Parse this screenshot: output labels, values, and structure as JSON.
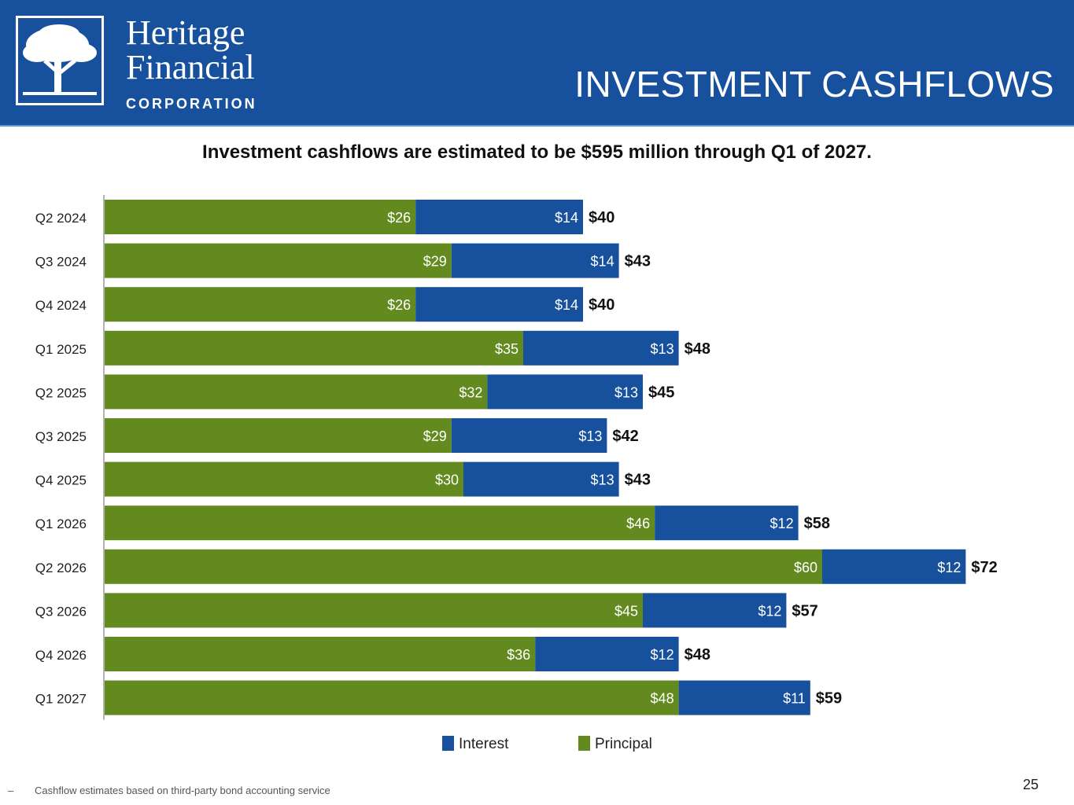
{
  "header": {
    "logo_line1": "Heritage",
    "logo_line2": "Financial",
    "logo_line3": "CORPORATION",
    "title": "INVESTMENT CASHFLOWS",
    "color": "#17509c"
  },
  "subtitle": "Investment cashflows are estimated to be $595 million through Q1 of 2027.",
  "chart_data": {
    "type": "bar",
    "orientation": "horizontal",
    "stacked": true,
    "categories": [
      "Q2 2024",
      "Q3 2024",
      "Q4 2024",
      "Q1 2025",
      "Q2 2025",
      "Q3 2025",
      "Q4 2025",
      "Q1 2026",
      "Q2 2026",
      "Q3 2026",
      "Q4 2026",
      "Q1 2027"
    ],
    "series": [
      {
        "name": "Principal",
        "color": "#628a1e",
        "values": [
          26,
          29,
          26,
          35,
          32,
          29,
          30,
          46,
          60,
          45,
          36,
          48
        ],
        "labels": [
          "$26",
          "$29",
          "$26",
          "$35",
          "$32",
          "$29",
          "$30",
          "$46",
          "$60",
          "$45",
          "$36",
          "$48"
        ]
      },
      {
        "name": "Interest",
        "color": "#17509c",
        "values": [
          14,
          14,
          14,
          13,
          13,
          13,
          13,
          12,
          12,
          12,
          12,
          11
        ],
        "labels": [
          "$14",
          "$14",
          "$14",
          "$13",
          "$13",
          "$13",
          "$13",
          "$12",
          "$12",
          "$12",
          "$12",
          "$11"
        ]
      }
    ],
    "totals": [
      40,
      43,
      40,
      48,
      45,
      42,
      43,
      58,
      72,
      57,
      48,
      59
    ],
    "total_labels": [
      "$40",
      "$43",
      "$40",
      "$48",
      "$45",
      "$42",
      "$43",
      "$58",
      "$72",
      "$57",
      "$48",
      "$59"
    ],
    "xlim": [
      0,
      72
    ],
    "legend": [
      {
        "name": "Interest",
        "color": "#17509c"
      },
      {
        "name": "Principal",
        "color": "#628a1e"
      }
    ],
    "legend_position": "bottom",
    "grid": false
  },
  "footnote": {
    "bullet": "–",
    "text": "Cashflow estimates based on third-party bond accounting service"
  },
  "page_number": "25"
}
